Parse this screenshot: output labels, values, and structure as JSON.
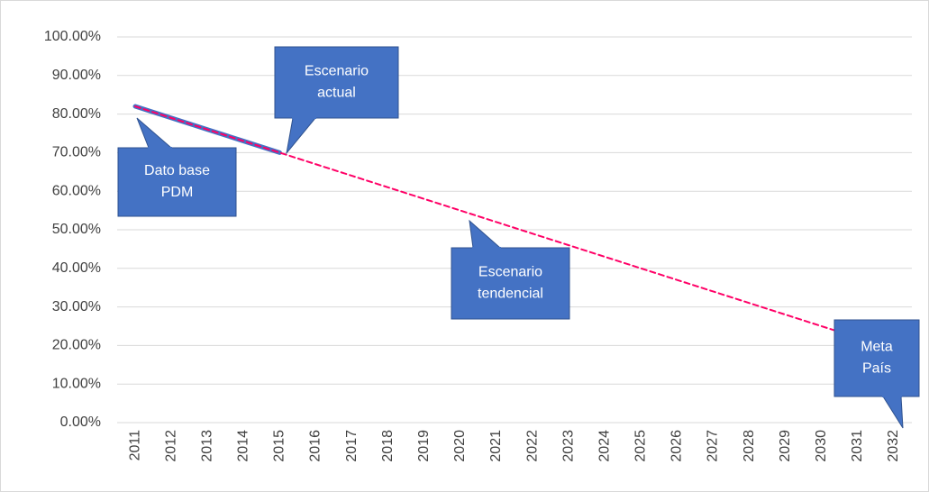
{
  "chart_data": {
    "type": "line",
    "categories": [
      "2011",
      "2012",
      "2013",
      "2014",
      "2015",
      "2016",
      "2017",
      "2018",
      "2019",
      "2020",
      "2021",
      "2022",
      "2023",
      "2024",
      "2025",
      "2026",
      "2027",
      "2028",
      "2029",
      "2030",
      "2031",
      "2032"
    ],
    "series": [
      {
        "color": "#4472c4",
        "style": "solid",
        "values": [
          82,
          79,
          76,
          73,
          70,
          null,
          null,
          null,
          null,
          null,
          null,
          null,
          null,
          null,
          null,
          null,
          null,
          null,
          null,
          null,
          null,
          null
        ]
      },
      {
        "color": "#ff0066",
        "style": "dashed",
        "values": [
          82,
          79,
          76,
          73,
          70,
          67,
          64,
          61,
          58,
          55,
          52,
          49,
          46,
          43,
          40,
          37,
          34,
          31,
          28,
          25,
          22,
          19
        ]
      }
    ],
    "ylim": [
      0,
      100
    ],
    "yticks": [
      {
        "value": 0,
        "label": "0.00%"
      },
      {
        "value": 10,
        "label": "10.00%"
      },
      {
        "value": 20,
        "label": "20.00%"
      },
      {
        "value": 30,
        "label": "30.00%"
      },
      {
        "value": 40,
        "label": "40.00%"
      },
      {
        "value": 50,
        "label": "50.00%"
      },
      {
        "value": 60,
        "label": "60.00%"
      },
      {
        "value": 70,
        "label": "70.00%"
      },
      {
        "value": 80,
        "label": "80.00%"
      },
      {
        "value": 90,
        "label": "90.00%"
      },
      {
        "value": 100,
        "label": "100.00%"
      }
    ],
    "grid": true,
    "annotations": [
      {
        "lines": [
          "Escenario",
          "actual"
        ]
      },
      {
        "lines": [
          "Dato base",
          "PDM"
        ]
      },
      {
        "lines": [
          "Escenario",
          "tendencial"
        ]
      },
      {
        "lines": [
          "Meta",
          "País"
        ]
      }
    ]
  }
}
